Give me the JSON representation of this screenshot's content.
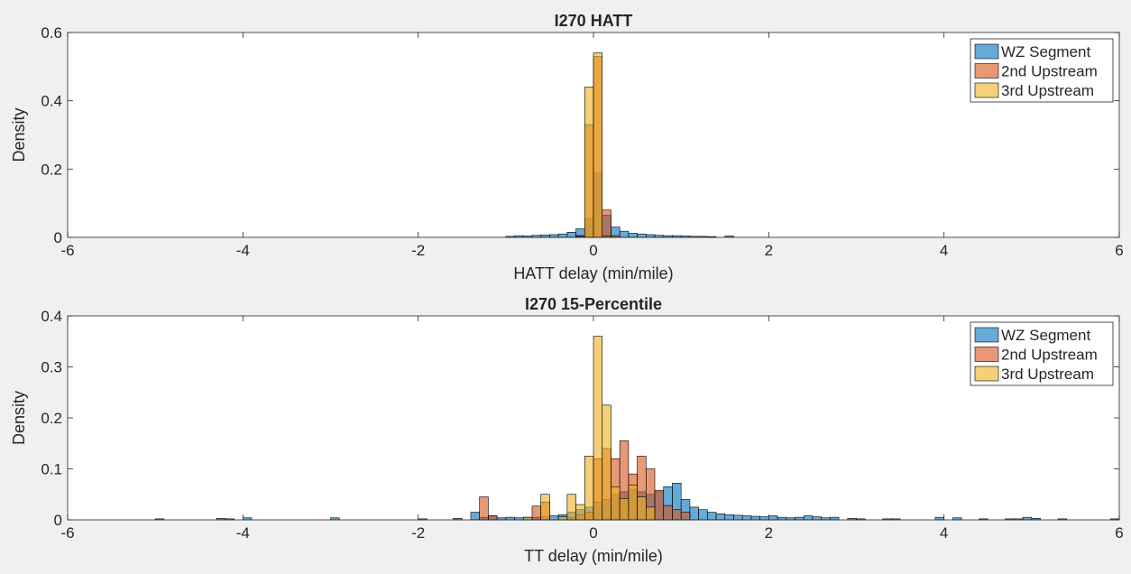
{
  "chart_data": [
    {
      "type": "histogram",
      "title": "I270 HATT",
      "xlabel": "HATT delay (min/mile)",
      "ylabel": "Density",
      "xlim": [
        -6,
        6
      ],
      "ylim": [
        0,
        0.6
      ],
      "xticks": [
        "-6",
        "-4",
        "-2",
        "0",
        "2",
        "4",
        "6"
      ],
      "yticks": [
        "0",
        "0.2",
        "0.4",
        "0.6"
      ],
      "legend_position": "top-right",
      "grid": false,
      "bin_width": 0.1,
      "series": [
        {
          "name": "WZ Segment",
          "color": "#0072BD",
          "bins": [
            [
              -1.0,
              0.003
            ],
            [
              -0.9,
              0.005
            ],
            [
              -0.8,
              0.004
            ],
            [
              -0.7,
              0.006
            ],
            [
              -0.6,
              0.007
            ],
            [
              -0.5,
              0.008
            ],
            [
              -0.4,
              0.01
            ],
            [
              -0.3,
              0.015
            ],
            [
              -0.2,
              0.025
            ],
            [
              -0.1,
              0.055
            ],
            [
              0.0,
              0.19
            ],
            [
              0.1,
              0.065
            ],
            [
              0.2,
              0.03
            ],
            [
              0.3,
              0.018
            ],
            [
              0.4,
              0.012
            ],
            [
              0.5,
              0.01
            ],
            [
              0.6,
              0.008
            ],
            [
              0.7,
              0.006
            ],
            [
              0.8,
              0.005
            ],
            [
              0.9,
              0.005
            ],
            [
              1.0,
              0.004
            ],
            [
              1.1,
              0.003
            ],
            [
              1.2,
              0.003
            ],
            [
              1.3,
              0.002
            ],
            [
              1.5,
              0.004
            ]
          ]
        },
        {
          "name": "2nd Upstream",
          "color": "#D95319",
          "bins": [
            [
              -0.2,
              0.005
            ],
            [
              -0.1,
              0.33
            ],
            [
              0.0,
              0.53
            ],
            [
              0.1,
              0.08
            ],
            [
              0.2,
              0.005
            ]
          ]
        },
        {
          "name": "3rd Upstream",
          "color": "#EDB120",
          "bins": [
            [
              -0.2,
              0.003
            ],
            [
              -0.1,
              0.44
            ],
            [
              0.0,
              0.54
            ],
            [
              0.1,
              0.004
            ]
          ]
        }
      ]
    },
    {
      "type": "histogram",
      "title": "I270 15-Percentile",
      "xlabel": "TT delay (min/mile)",
      "ylabel": "Density",
      "xlim": [
        -6,
        6
      ],
      "ylim": [
        0,
        0.4
      ],
      "xticks": [
        "-6",
        "-4",
        "-2",
        "0",
        "2",
        "4",
        "6"
      ],
      "yticks": [
        "0",
        "0.1",
        "0.2",
        "0.3",
        "0.4"
      ],
      "legend_position": "top-right",
      "grid": false,
      "bin_width": 0.1,
      "series": [
        {
          "name": "WZ Segment",
          "color": "#0072BD",
          "bins": [
            [
              -5.0,
              0.002
            ],
            [
              -4.3,
              0.003
            ],
            [
              -4.2,
              0.002
            ],
            [
              -4.0,
              0.004
            ],
            [
              -3.0,
              0.004
            ],
            [
              -2.0,
              0.002
            ],
            [
              -1.6,
              0.003
            ],
            [
              -1.4,
              0.015
            ],
            [
              -1.3,
              0.005
            ],
            [
              -1.2,
              0.008
            ],
            [
              -1.1,
              0.004
            ],
            [
              -1.0,
              0.005
            ],
            [
              -0.9,
              0.004
            ],
            [
              -0.8,
              0.005
            ],
            [
              -0.7,
              0.005
            ],
            [
              -0.6,
              0.006
            ],
            [
              -0.5,
              0.008
            ],
            [
              -0.4,
              0.01
            ],
            [
              -0.3,
              0.015
            ],
            [
              -0.2,
              0.02
            ],
            [
              -0.1,
              0.025
            ],
            [
              0.0,
              0.035
            ],
            [
              0.1,
              0.04
            ],
            [
              0.2,
              0.05
            ],
            [
              0.3,
              0.055
            ],
            [
              0.4,
              0.06
            ],
            [
              0.5,
              0.055
            ],
            [
              0.6,
              0.05
            ],
            [
              0.7,
              0.055
            ],
            [
              0.8,
              0.065
            ],
            [
              0.9,
              0.072
            ],
            [
              1.0,
              0.04
            ],
            [
              1.1,
              0.025
            ],
            [
              1.2,
              0.02
            ],
            [
              1.3,
              0.015
            ],
            [
              1.4,
              0.012
            ],
            [
              1.5,
              0.01
            ],
            [
              1.6,
              0.009
            ],
            [
              1.7,
              0.008
            ],
            [
              1.8,
              0.007
            ],
            [
              1.9,
              0.006
            ],
            [
              2.0,
              0.008
            ],
            [
              2.1,
              0.005
            ],
            [
              2.2,
              0.004
            ],
            [
              2.3,
              0.005
            ],
            [
              2.4,
              0.008
            ],
            [
              2.5,
              0.006
            ],
            [
              2.6,
              0.004
            ],
            [
              2.7,
              0.005
            ],
            [
              2.9,
              0.003
            ],
            [
              3.0,
              0.002
            ],
            [
              3.3,
              0.002
            ],
            [
              3.4,
              0.002
            ],
            [
              3.9,
              0.005
            ],
            [
              4.1,
              0.004
            ],
            [
              4.4,
              0.002
            ],
            [
              4.7,
              0.002
            ],
            [
              4.8,
              0.002
            ],
            [
              4.9,
              0.005
            ],
            [
              5.0,
              0.003
            ],
            [
              5.3,
              0.002
            ],
            [
              5.9,
              0.002
            ]
          ]
        },
        {
          "name": "2nd Upstream",
          "color": "#D95319",
          "bins": [
            [
              -1.3,
              0.045
            ],
            [
              -1.2,
              0.008
            ],
            [
              -0.7,
              0.027
            ],
            [
              -0.6,
              0.035
            ],
            [
              -0.3,
              0.004
            ],
            [
              -0.2,
              0.01
            ],
            [
              -0.1,
              0.015
            ],
            [
              0.0,
              0.12
            ],
            [
              0.1,
              0.14
            ],
            [
              0.2,
              0.12
            ],
            [
              0.3,
              0.155
            ],
            [
              0.4,
              0.09
            ],
            [
              0.5,
              0.125
            ],
            [
              0.6,
              0.1
            ],
            [
              0.7,
              0.058
            ],
            [
              0.8,
              0.028
            ],
            [
              0.9,
              0.02
            ],
            [
              1.0,
              0.015
            ]
          ]
        },
        {
          "name": "3rd Upstream",
          "color": "#EDB120",
          "bins": [
            [
              -0.8,
              0.005
            ],
            [
              -0.6,
              0.05
            ],
            [
              -0.4,
              0.006
            ],
            [
              -0.3,
              0.05
            ],
            [
              -0.2,
              0.03
            ],
            [
              -0.1,
              0.125
            ],
            [
              0.0,
              0.36
            ],
            [
              0.1,
              0.225
            ],
            [
              0.2,
              0.065
            ],
            [
              0.3,
              0.042
            ],
            [
              0.4,
              0.068
            ],
            [
              0.5,
              0.045
            ],
            [
              0.6,
              0.025
            ]
          ]
        }
      ]
    }
  ]
}
